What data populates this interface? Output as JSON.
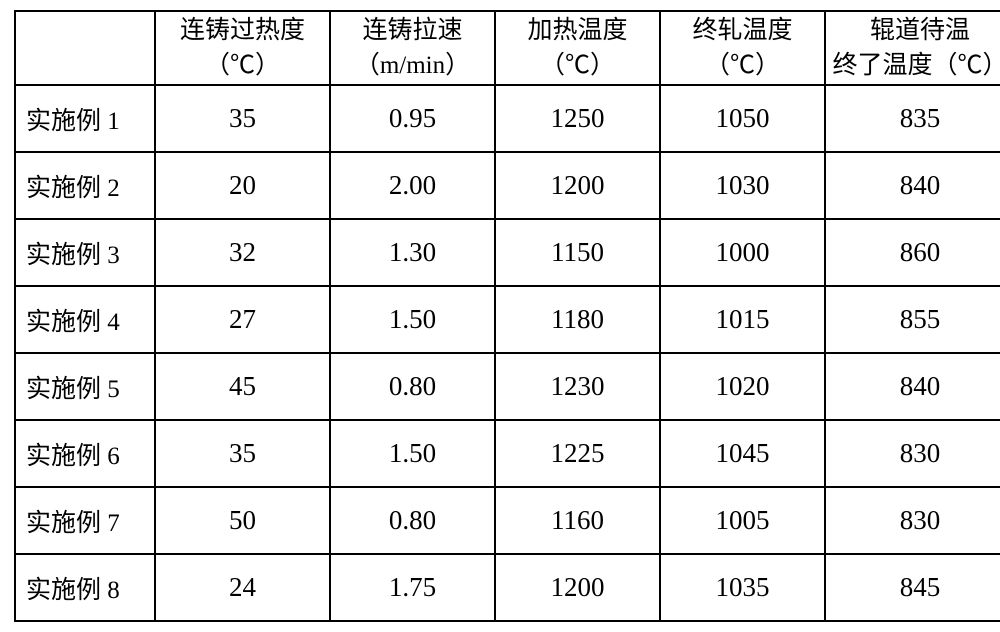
{
  "table": {
    "border_color": "#000000",
    "background_color": "#ffffff",
    "text_color": "#000000",
    "header_fontsize": 25,
    "cell_fontsize": 27,
    "columns": [
      {
        "key": "label",
        "line1": "",
        "line2": ""
      },
      {
        "key": "c1",
        "line1": "连铸过热度",
        "line2": "（℃）"
      },
      {
        "key": "c2",
        "line1": "连铸拉速",
        "line2": "（m/min）"
      },
      {
        "key": "c3",
        "line1": "加热温度",
        "line2": "（℃）"
      },
      {
        "key": "c4",
        "line1": "终轧温度",
        "line2": "（℃）"
      },
      {
        "key": "c5",
        "line1": "辊道待温",
        "line2": "终了温度（℃）"
      }
    ],
    "rows": [
      {
        "label": "实施例 1",
        "c1": "35",
        "c2": "0.95",
        "c3": "1250",
        "c4": "1050",
        "c5": "835"
      },
      {
        "label": "实施例 2",
        "c1": "20",
        "c2": "2.00",
        "c3": "1200",
        "c4": "1030",
        "c5": "840"
      },
      {
        "label": "实施例 3",
        "c1": "32",
        "c2": "1.30",
        "c3": "1150",
        "c4": "1000",
        "c5": "860"
      },
      {
        "label": "实施例 4",
        "c1": "27",
        "c2": "1.50",
        "c3": "1180",
        "c4": "1015",
        "c5": "855"
      },
      {
        "label": "实施例 5",
        "c1": "45",
        "c2": "0.80",
        "c3": "1230",
        "c4": "1020",
        "c5": "840"
      },
      {
        "label": "实施例 6",
        "c1": "35",
        "c2": "1.50",
        "c3": "1225",
        "c4": "1045",
        "c5": "830"
      },
      {
        "label": "实施例 7",
        "c1": "50",
        "c2": "0.80",
        "c3": "1160",
        "c4": "1005",
        "c5": "830"
      },
      {
        "label": "实施例 8",
        "c1": "24",
        "c2": "1.75",
        "c3": "1200",
        "c4": "1035",
        "c5": "845"
      }
    ]
  }
}
